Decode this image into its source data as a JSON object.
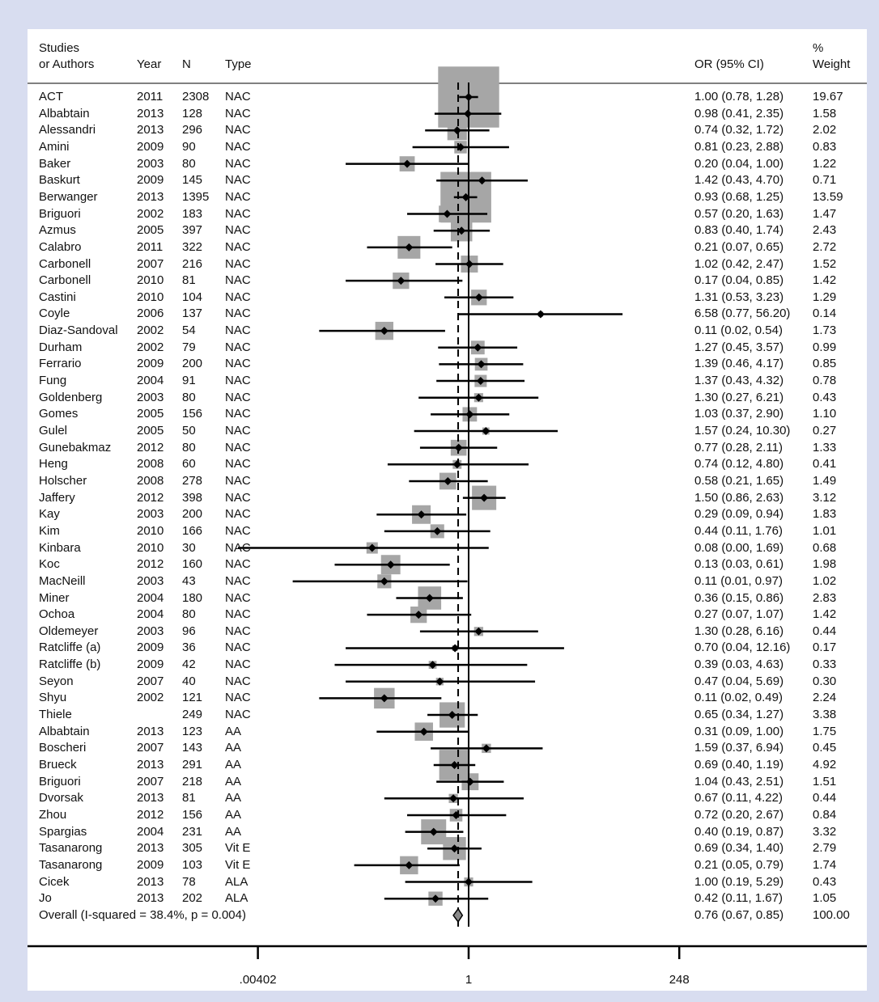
{
  "header": {
    "study_line1": "Studies",
    "study_line2": "or Authors",
    "year": "Year",
    "n": "N",
    "type": "Type",
    "or_ci": "OR (95% CI)",
    "weight_line1": "%",
    "weight_line2": "Weight"
  },
  "colors": {
    "page_background": "#d8ddf0",
    "panel": "#ffffff",
    "weight_box": "#a6a6a6",
    "lines": "#000000",
    "diamond_fill": "#8a8a8a"
  },
  "chart_data": {
    "type": "forest",
    "x_scale": "log",
    "x_ticks": [
      ".00402",
      "1",
      "248"
    ],
    "x_tick_values": [
      0.00402,
      1,
      248
    ],
    "null_line": 1,
    "overall_line": 0.76,
    "studies": [
      {
        "study": "ACT",
        "year": "2011",
        "n": "2308",
        "type": "NAC",
        "or": 1.0,
        "lo": 0.78,
        "hi": 1.28,
        "or_ci": "1.00 (0.78, 1.28)",
        "weight": "19.67"
      },
      {
        "study": "Albabtain",
        "year": "2013",
        "n": "128",
        "type": "NAC",
        "or": 0.98,
        "lo": 0.41,
        "hi": 2.35,
        "or_ci": "0.98 (0.41, 2.35)",
        "weight": "1.58"
      },
      {
        "study": "Alessandri",
        "year": "2013",
        "n": "296",
        "type": "NAC",
        "or": 0.74,
        "lo": 0.32,
        "hi": 1.72,
        "or_ci": "0.74 (0.32, 1.72)",
        "weight": "2.02"
      },
      {
        "study": "Amini",
        "year": "2009",
        "n": "90",
        "type": "NAC",
        "or": 0.81,
        "lo": 0.23,
        "hi": 2.88,
        "or_ci": "0.81 (0.23, 2.88)",
        "weight": "0.83"
      },
      {
        "study": "Baker",
        "year": "2003",
        "n": "80",
        "type": "NAC",
        "or": 0.2,
        "lo": 0.04,
        "hi": 1.0,
        "or_ci": "0.20 (0.04, 1.00)",
        "weight": "1.22"
      },
      {
        "study": "Baskurt",
        "year": "2009",
        "n": "145",
        "type": "NAC",
        "or": 1.42,
        "lo": 0.43,
        "hi": 4.7,
        "or_ci": "1.42 (0.43, 4.70)",
        "weight": "0.71"
      },
      {
        "study": "Berwanger",
        "year": "2013",
        "n": "1395",
        "type": "NAC",
        "or": 0.93,
        "lo": 0.68,
        "hi": 1.25,
        "or_ci": "0.93 (0.68, 1.25)",
        "weight": "13.59"
      },
      {
        "study": "Briguori",
        "year": "2002",
        "n": "183",
        "type": "NAC",
        "or": 0.57,
        "lo": 0.2,
        "hi": 1.63,
        "or_ci": "0.57 (0.20, 1.63)",
        "weight": "1.47"
      },
      {
        "study": "Azmus",
        "year": "2005",
        "n": "397",
        "type": "NAC",
        "or": 0.83,
        "lo": 0.4,
        "hi": 1.74,
        "or_ci": "0.83 (0.40, 1.74)",
        "weight": "2.43"
      },
      {
        "study": "Calabro",
        "year": "2011",
        "n": "322",
        "type": "NAC",
        "or": 0.21,
        "lo": 0.07,
        "hi": 0.65,
        "or_ci": "0.21 (0.07, 0.65)",
        "weight": "2.72"
      },
      {
        "study": "Carbonell",
        "year": "2007",
        "n": "216",
        "type": "NAC",
        "or": 1.02,
        "lo": 0.42,
        "hi": 2.47,
        "or_ci": "1.02 (0.42, 2.47)",
        "weight": "1.52"
      },
      {
        "study": "Carbonell",
        "year": "2010",
        "n": "81",
        "type": "NAC",
        "or": 0.17,
        "lo": 0.04,
        "hi": 0.85,
        "or_ci": "0.17 (0.04, 0.85)",
        "weight": "1.42"
      },
      {
        "study": "Castini",
        "year": "2010",
        "n": "104",
        "type": "NAC",
        "or": 1.31,
        "lo": 0.53,
        "hi": 3.23,
        "or_ci": "1.31 (0.53, 3.23)",
        "weight": "1.29"
      },
      {
        "study": "Coyle",
        "year": "2006",
        "n": "137",
        "type": "NAC",
        "or": 6.58,
        "lo": 0.77,
        "hi": 56.2,
        "or_ci": "6.58 (0.77, 56.20)",
        "weight": "0.14"
      },
      {
        "study": "Diaz-Sandoval",
        "year": "2002",
        "n": "54",
        "type": "NAC",
        "or": 0.11,
        "lo": 0.02,
        "hi": 0.54,
        "or_ci": "0.11 (0.02, 0.54)",
        "weight": "1.73"
      },
      {
        "study": "Durham",
        "year": "2002",
        "n": "79",
        "type": "NAC",
        "or": 1.27,
        "lo": 0.45,
        "hi": 3.57,
        "or_ci": "1.27 (0.45, 3.57)",
        "weight": "0.99"
      },
      {
        "study": "Ferrario",
        "year": "2009",
        "n": "200",
        "type": "NAC",
        "or": 1.39,
        "lo": 0.46,
        "hi": 4.17,
        "or_ci": "1.39 (0.46, 4.17)",
        "weight": "0.85"
      },
      {
        "study": "Fung",
        "year": "2004",
        "n": "91",
        "type": "NAC",
        "or": 1.37,
        "lo": 0.43,
        "hi": 4.32,
        "or_ci": "1.37 (0.43, 4.32)",
        "weight": "0.78"
      },
      {
        "study": "Goldenberg",
        "year": "2003",
        "n": "80",
        "type": "NAC",
        "or": 1.3,
        "lo": 0.27,
        "hi": 6.21,
        "or_ci": "1.30 (0.27, 6.21)",
        "weight": "0.43"
      },
      {
        "study": "Gomes",
        "year": "2005",
        "n": "156",
        "type": "NAC",
        "or": 1.03,
        "lo": 0.37,
        "hi": 2.9,
        "or_ci": "1.03 (0.37, 2.90)",
        "weight": "1.10"
      },
      {
        "study": "Gulel",
        "year": "2005",
        "n": "50",
        "type": "NAC",
        "or": 1.57,
        "lo": 0.24,
        "hi": 10.3,
        "or_ci": "1.57 (0.24, 10.30)",
        "weight": "0.27"
      },
      {
        "study": "Gunebakmaz",
        "year": "2012",
        "n": "80",
        "type": "NAC",
        "or": 0.77,
        "lo": 0.28,
        "hi": 2.11,
        "or_ci": "0.77 (0.28, 2.11)",
        "weight": "1.33"
      },
      {
        "study": "Heng",
        "year": "2008",
        "n": "60",
        "type": "NAC",
        "or": 0.74,
        "lo": 0.12,
        "hi": 4.8,
        "or_ci": "0.74 (0.12, 4.80)",
        "weight": "0.41"
      },
      {
        "study": "Holscher",
        "year": "2008",
        "n": "278",
        "type": "NAC",
        "or": 0.58,
        "lo": 0.21,
        "hi": 1.65,
        "or_ci": "0.58 (0.21, 1.65)",
        "weight": "1.49"
      },
      {
        "study": "Jaffery",
        "year": "2012",
        "n": "398",
        "type": "NAC",
        "or": 1.5,
        "lo": 0.86,
        "hi": 2.63,
        "or_ci": "1.50 (0.86, 2.63)",
        "weight": "3.12"
      },
      {
        "study": "Kay",
        "year": "2003",
        "n": "200",
        "type": "NAC",
        "or": 0.29,
        "lo": 0.09,
        "hi": 0.94,
        "or_ci": "0.29 (0.09, 0.94)",
        "weight": "1.83"
      },
      {
        "study": "Kim",
        "year": "2010",
        "n": "166",
        "type": "NAC",
        "or": 0.44,
        "lo": 0.11,
        "hi": 1.76,
        "or_ci": "0.44 (0.11, 1.76)",
        "weight": "1.01"
      },
      {
        "study": "Kinbara",
        "year": "2010",
        "n": "30",
        "type": "NAC",
        "or": 0.08,
        "lo": 0.0,
        "hi": 1.69,
        "or_ci": "0.08 (0.00, 1.69)",
        "weight": "0.68"
      },
      {
        "study": "Koc",
        "year": "2012",
        "n": "160",
        "type": "NAC",
        "or": 0.13,
        "lo": 0.03,
        "hi": 0.61,
        "or_ci": "0.13 (0.03, 0.61)",
        "weight": "1.98"
      },
      {
        "study": "MacNeill",
        "year": "2003",
        "n": "43",
        "type": "NAC",
        "or": 0.11,
        "lo": 0.01,
        "hi": 0.97,
        "or_ci": "0.11 (0.01, 0.97)",
        "weight": "1.02"
      },
      {
        "study": "Miner",
        "year": "2004",
        "n": "180",
        "type": "NAC",
        "or": 0.36,
        "lo": 0.15,
        "hi": 0.86,
        "or_ci": "0.36 (0.15, 0.86)",
        "weight": "2.83"
      },
      {
        "study": "Ochoa",
        "year": "2004",
        "n": "80",
        "type": "NAC",
        "or": 0.27,
        "lo": 0.07,
        "hi": 1.07,
        "or_ci": "0.27 (0.07, 1.07)",
        "weight": "1.42"
      },
      {
        "study": "Oldemeyer",
        "year": "2003",
        "n": "96",
        "type": "NAC",
        "or": 1.3,
        "lo": 0.28,
        "hi": 6.16,
        "or_ci": "1.30 (0.28, 6.16)",
        "weight": "0.44"
      },
      {
        "study": "Ratcliffe (a)",
        "year": "2009",
        "n": "36",
        "type": "NAC",
        "or": 0.7,
        "lo": 0.04,
        "hi": 12.16,
        "or_ci": "0.70 (0.04, 12.16)",
        "weight": "0.17"
      },
      {
        "study": "Ratcliffe (b)",
        "year": "2009",
        "n": "42",
        "type": "NAC",
        "or": 0.39,
        "lo": 0.03,
        "hi": 4.63,
        "or_ci": "0.39 (0.03, 4.63)",
        "weight": "0.33"
      },
      {
        "study": "Seyon",
        "year": "2007",
        "n": "40",
        "type": "NAC",
        "or": 0.47,
        "lo": 0.04,
        "hi": 5.69,
        "or_ci": "0.47 (0.04, 5.69)",
        "weight": "0.30"
      },
      {
        "study": "Shyu",
        "year": "2002",
        "n": "121",
        "type": "NAC",
        "or": 0.11,
        "lo": 0.02,
        "hi": 0.49,
        "or_ci": "0.11 (0.02, 0.49)",
        "weight": "2.24"
      },
      {
        "study": "Thiele",
        "year": "",
        "n": "249",
        "type": "NAC",
        "or": 0.65,
        "lo": 0.34,
        "hi": 1.27,
        "or_ci": "0.65 (0.34, 1.27)",
        "weight": "3.38"
      },
      {
        "study": "Albabtain",
        "year": "2013",
        "n": "123",
        "type": "AA",
        "or": 0.31,
        "lo": 0.09,
        "hi": 1.0,
        "or_ci": "0.31 (0.09, 1.00)",
        "weight": "1.75"
      },
      {
        "study": "Boscheri",
        "year": "2007",
        "n": "143",
        "type": "AA",
        "or": 1.59,
        "lo": 0.37,
        "hi": 6.94,
        "or_ci": "1.59 (0.37, 6.94)",
        "weight": "0.45"
      },
      {
        "study": "Brueck",
        "year": "2013",
        "n": "291",
        "type": "AA",
        "or": 0.69,
        "lo": 0.4,
        "hi": 1.19,
        "or_ci": "0.69 (0.40, 1.19)",
        "weight": "4.92"
      },
      {
        "study": "Briguori",
        "year": "2007",
        "n": "218",
        "type": "AA",
        "or": 1.04,
        "lo": 0.43,
        "hi": 2.51,
        "or_ci": "1.04 (0.43, 2.51)",
        "weight": "1.51"
      },
      {
        "study": "Dvorsak",
        "year": "2013",
        "n": "81",
        "type": "AA",
        "or": 0.67,
        "lo": 0.11,
        "hi": 4.22,
        "or_ci": "0.67 (0.11, 4.22)",
        "weight": "0.44"
      },
      {
        "study": "Zhou",
        "year": "2012",
        "n": "156",
        "type": "AA",
        "or": 0.72,
        "lo": 0.2,
        "hi": 2.67,
        "or_ci": "0.72 (0.20, 2.67)",
        "weight": "0.84"
      },
      {
        "study": "Spargias",
        "year": "2004",
        "n": "231",
        "type": "AA",
        "or": 0.4,
        "lo": 0.19,
        "hi": 0.87,
        "or_ci": "0.40 (0.19, 0.87)",
        "weight": "3.32"
      },
      {
        "study": "Tasanarong",
        "year": "2013",
        "n": "305",
        "type": "Vit E",
        "or": 0.69,
        "lo": 0.34,
        "hi": 1.4,
        "or_ci": "0.69 (0.34, 1.40)",
        "weight": "2.79"
      },
      {
        "study": "Tasanarong",
        "year": "2009",
        "n": "103",
        "type": "Vit E",
        "or": 0.21,
        "lo": 0.05,
        "hi": 0.79,
        "or_ci": "0.21 (0.05, 0.79)",
        "weight": "1.74"
      },
      {
        "study": "Cicek",
        "year": "2013",
        "n": "78",
        "type": "ALA",
        "or": 1.0,
        "lo": 0.19,
        "hi": 5.29,
        "or_ci": "1.00 (0.19, 5.29)",
        "weight": "0.43"
      },
      {
        "study": "Jo",
        "year": "2013",
        "n": "202",
        "type": "ALA",
        "or": 0.42,
        "lo": 0.11,
        "hi": 1.67,
        "or_ci": "0.42 (0.11, 1.67)",
        "weight": "1.05"
      }
    ],
    "overall": {
      "label": "Overall  (I-squared = 38.4%, p = 0.004)",
      "or": 0.76,
      "lo": 0.67,
      "hi": 0.85,
      "or_ci": "0.76 (0.67, 0.85)",
      "weight": "100.00"
    }
  }
}
